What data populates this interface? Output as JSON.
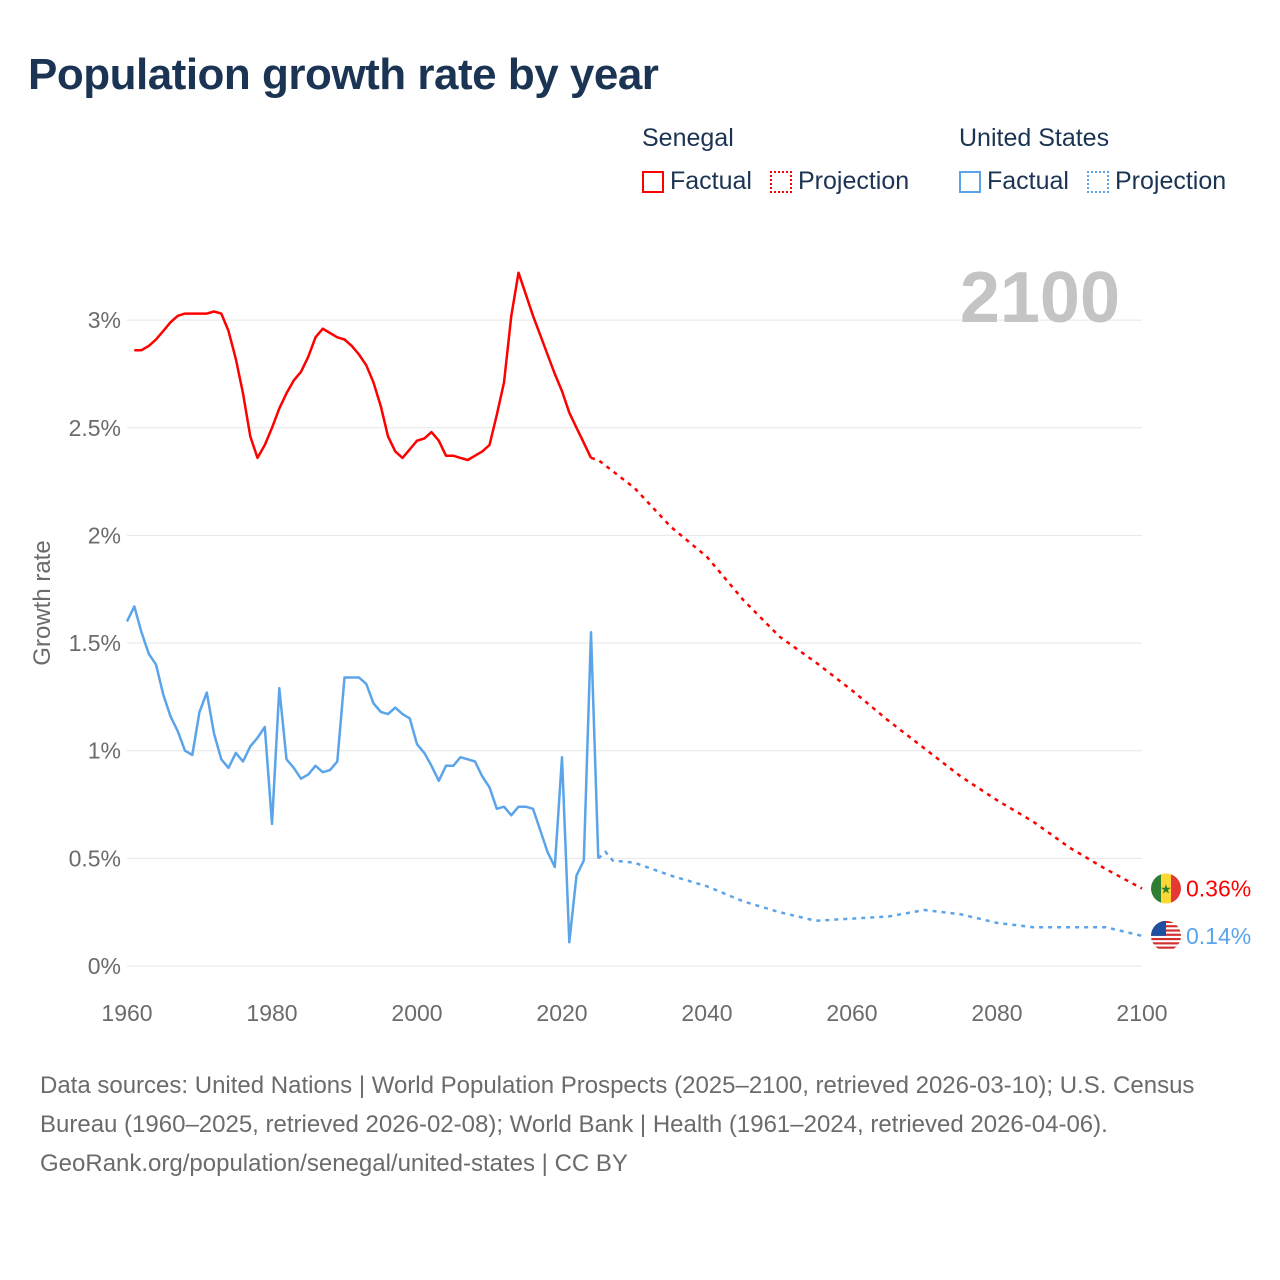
{
  "title": "Population growth rate by year",
  "legend": {
    "groups": [
      {
        "name": "Senegal",
        "factual": "Factual",
        "projection": "Projection",
        "color": "#ff0000"
      },
      {
        "name": "United States",
        "factual": "Factual",
        "projection": "Projection",
        "color": "#5ba4ea"
      }
    ]
  },
  "footer": {
    "sources": "Data sources: United Nations | World Population Prospects (2025–2100, retrieved 2026-03-10); U.S. Census Bureau (1960–2025, retrieved 2026-02-08); World Bank | Health (1961–2024, retrieved 2026-04-06).",
    "credit": "GeoRank.org/population/senegal/united-states | CC BY"
  },
  "chart_data": {
    "type": "line",
    "title": "Population growth rate by year",
    "ylabel": "Growth rate",
    "xlabel": "",
    "year_label": "2100",
    "xlim": [
      1960,
      2100
    ],
    "ylim": [
      0,
      3.3
    ],
    "x_ticks": [
      "1960",
      "1980",
      "2000",
      "2020",
      "2040",
      "2060",
      "2080",
      "2100"
    ],
    "x_tick_values": [
      1960,
      1980,
      2000,
      2020,
      2040,
      2060,
      2080,
      2100
    ],
    "y_ticks": [
      "0%",
      "0.5%",
      "1%",
      "1.5%",
      "2%",
      "2.5%",
      "3%"
    ],
    "y_tick_values": [
      0,
      0.5,
      1,
      1.5,
      2,
      2.5,
      3
    ],
    "grid": true,
    "legend_position": "top-right",
    "series": [
      {
        "name": "Senegal",
        "color": "#ff0000",
        "end_label": "0.36%",
        "factual": {
          "x": [
            1961,
            1962,
            1963,
            1964,
            1965,
            1966,
            1967,
            1968,
            1969,
            1970,
            1971,
            1972,
            1973,
            1974,
            1975,
            1976,
            1977,
            1978,
            1979,
            1980,
            1981,
            1982,
            1983,
            1984,
            1985,
            1986,
            1987,
            1988,
            1989,
            1990,
            1991,
            1992,
            1993,
            1994,
            1995,
            1996,
            1997,
            1998,
            1999,
            2000,
            2001,
            2002,
            2003,
            2004,
            2005,
            2006,
            2007,
            2008,
            2009,
            2010,
            2011,
            2012,
            2013,
            2014,
            2015,
            2016,
            2017,
            2018,
            2019,
            2020,
            2021,
            2022,
            2023,
            2024
          ],
          "y": [
            2.86,
            2.86,
            2.88,
            2.91,
            2.95,
            2.99,
            3.02,
            3.03,
            3.03,
            3.03,
            3.03,
            3.04,
            3.03,
            2.95,
            2.82,
            2.66,
            2.46,
            2.36,
            2.42,
            2.5,
            2.59,
            2.66,
            2.72,
            2.76,
            2.83,
            2.92,
            2.96,
            2.94,
            2.92,
            2.91,
            2.88,
            2.84,
            2.79,
            2.71,
            2.6,
            2.46,
            2.39,
            2.36,
            2.4,
            2.44,
            2.45,
            2.48,
            2.44,
            2.37,
            2.37,
            2.36,
            2.35,
            2.37,
            2.39,
            2.42,
            2.56,
            2.71,
            3.02,
            3.22,
            3.12,
            3.02,
            2.93,
            2.84,
            2.75,
            2.67,
            2.57,
            2.5,
            2.43,
            2.36
          ]
        },
        "projection": {
          "x": [
            2024,
            2025,
            2030,
            2035,
            2040,
            2045,
            2050,
            2055,
            2060,
            2065,
            2070,
            2075,
            2080,
            2085,
            2090,
            2095,
            2100
          ],
          "y": [
            2.36,
            2.35,
            2.22,
            2.04,
            1.9,
            1.7,
            1.53,
            1.41,
            1.28,
            1.14,
            1.01,
            0.88,
            0.77,
            0.67,
            0.55,
            0.45,
            0.36
          ]
        }
      },
      {
        "name": "United States",
        "color": "#5ba4ea",
        "end_label": "0.14%",
        "factual": {
          "x": [
            1960,
            1961,
            1962,
            1963,
            1964,
            1965,
            1966,
            1967,
            1968,
            1969,
            1970,
            1971,
            1972,
            1973,
            1974,
            1975,
            1976,
            1977,
            1978,
            1979,
            1980,
            1981,
            1982,
            1983,
            1984,
            1985,
            1986,
            1987,
            1988,
            1989,
            1990,
            1991,
            1992,
            1993,
            1994,
            1995,
            1996,
            1997,
            1998,
            1999,
            2000,
            2001,
            2002,
            2003,
            2004,
            2005,
            2006,
            2007,
            2008,
            2009,
            2010,
            2011,
            2012,
            2013,
            2014,
            2015,
            2016,
            2017,
            2018,
            2019,
            2020,
            2021,
            2022,
            2023,
            2024,
            2025
          ],
          "y": [
            1.6,
            1.67,
            1.55,
            1.45,
            1.4,
            1.26,
            1.16,
            1.09,
            1.0,
            0.98,
            1.18,
            1.27,
            1.08,
            0.96,
            0.92,
            0.99,
            0.95,
            1.02,
            1.06,
            1.11,
            0.66,
            1.29,
            0.96,
            0.92,
            0.87,
            0.89,
            0.93,
            0.9,
            0.91,
            0.95,
            1.34,
            1.34,
            1.34,
            1.31,
            1.22,
            1.18,
            1.17,
            1.2,
            1.17,
            1.15,
            1.03,
            0.99,
            0.93,
            0.86,
            0.93,
            0.93,
            0.97,
            0.96,
            0.95,
            0.88,
            0.83,
            0.73,
            0.74,
            0.7,
            0.74,
            0.74,
            0.73,
            0.63,
            0.53,
            0.46,
            0.97,
            0.11,
            0.42,
            0.49,
            1.55,
            0.5
          ]
        },
        "projection": {
          "x": [
            2025,
            2026,
            2027,
            2030,
            2035,
            2040,
            2045,
            2050,
            2055,
            2060,
            2065,
            2070,
            2075,
            2080,
            2085,
            2090,
            2095,
            2100
          ],
          "y": [
            0.5,
            0.53,
            0.49,
            0.48,
            0.42,
            0.37,
            0.3,
            0.25,
            0.21,
            0.22,
            0.23,
            0.26,
            0.24,
            0.2,
            0.18,
            0.18,
            0.18,
            0.14
          ]
        }
      }
    ]
  }
}
